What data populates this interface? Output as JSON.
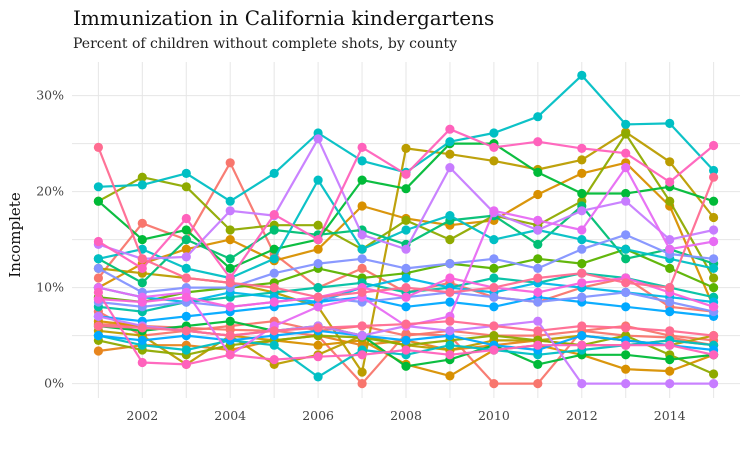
{
  "title": "Immunization in California kindergartens",
  "subtitle": "Percent of children without complete shots, by county",
  "chart_data": {
    "type": "line",
    "title": "Immunization in California kindergartens",
    "subtitle": "Percent of children without complete shots, by county",
    "xlabel": "",
    "ylabel": "Incomplete",
    "x": [
      2001,
      2002,
      2003,
      2004,
      2005,
      2006,
      2007,
      2008,
      2009,
      2010,
      2011,
      2012,
      2013,
      2014,
      2015
    ],
    "xlim": [
      2000.4,
      2015.6
    ],
    "ylim": [
      -0.015,
      0.335
    ],
    "x_ticks": [
      2002,
      2004,
      2006,
      2008,
      2010,
      2012,
      2014
    ],
    "x_tick_labels": [
      "2002",
      "2004",
      "2006",
      "2008",
      "2010",
      "2012",
      "2014"
    ],
    "y_ticks": [
      0,
      0.1,
      0.2,
      0.3
    ],
    "y_tick_labels": [
      "0%",
      "10%",
      "20%",
      "30%"
    ],
    "grid": true,
    "legend": "none",
    "markers": true,
    "series": [
      {
        "color": "#F8766D",
        "values": [
          0.11,
          0.167,
          0.15,
          0.23,
          0.135,
          0.1,
          0.12,
          0.095,
          0.105,
          0.09,
          0.085,
          0.1,
          0.11,
          0.08,
          0.075
        ]
      },
      {
        "color": "#F8766D",
        "values": [
          0.075,
          0.05,
          0.055,
          0.06,
          0.065,
          0.055,
          0.06,
          0.05,
          0.055,
          0.05,
          0.05,
          0.055,
          0.06,
          0.05,
          0.045
        ]
      },
      {
        "color": "#F8766D",
        "values": [
          0.062,
          0.06,
          0.058,
          0.056,
          0.055,
          0.05,
          0.0,
          0.052,
          0.05,
          0.0,
          0.0,
          0.055,
          0.05,
          0.048,
          0.04
        ]
      },
      {
        "color": "#E7851E",
        "values": [
          0.034,
          0.04,
          0.04,
          0.035,
          0.045,
          0.05,
          0.04,
          0.045,
          0.035,
          0.04,
          0.045,
          0.04,
          0.04,
          0.045,
          0.04
        ]
      },
      {
        "color": "#D89000",
        "values": [
          0.1,
          0.125,
          0.14,
          0.15,
          0.128,
          0.14,
          0.185,
          0.172,
          0.165,
          0.17,
          0.197,
          0.219,
          0.23,
          0.185,
          0.08
        ]
      },
      {
        "color": "#D89000",
        "values": [
          0.065,
          0.06,
          0.055,
          0.05,
          0.045,
          0.04,
          0.045,
          0.02,
          0.008,
          0.035,
          0.04,
          0.03,
          0.015,
          0.013,
          0.03
        ]
      },
      {
        "color": "#BB9D00",
        "values": [
          0.12,
          0.115,
          0.11,
          0.105,
          0.095,
          0.08,
          0.012,
          0.245,
          0.239,
          0.232,
          0.223,
          0.233,
          0.262,
          0.231,
          0.173
        ]
      },
      {
        "color": "#BB9D00",
        "values": [
          0.055,
          0.05,
          0.02,
          0.05,
          0.02,
          0.03,
          0.05,
          0.04,
          0.035,
          0.045,
          0.045,
          0.05,
          0.045,
          0.04,
          0.05
        ]
      },
      {
        "color": "#8FAA00",
        "values": [
          0.19,
          0.215,
          0.205,
          0.16,
          0.165,
          0.165,
          0.14,
          0.17,
          0.15,
          0.175,
          0.165,
          0.19,
          0.26,
          0.19,
          0.11
        ]
      },
      {
        "color": "#8FAA00",
        "values": [
          0.045,
          0.035,
          0.03,
          0.04,
          0.045,
          0.05,
          0.048,
          0.04,
          0.045,
          0.05,
          0.045,
          0.04,
          0.05,
          0.03,
          0.01
        ]
      },
      {
        "color": "#5BB300",
        "values": [
          0.09,
          0.085,
          0.095,
          0.1,
          0.105,
          0.12,
          0.11,
          0.115,
          0.125,
          0.12,
          0.13,
          0.125,
          0.14,
          0.12,
          0.1
        ]
      },
      {
        "color": "#00BA38",
        "values": [
          0.19,
          0.15,
          0.16,
          0.12,
          0.14,
          0.15,
          0.212,
          0.203,
          0.25,
          0.25,
          0.22,
          0.198,
          0.198,
          0.205,
          0.19
        ]
      },
      {
        "color": "#00BA38",
        "values": [
          0.06,
          0.055,
          0.06,
          0.065,
          0.055,
          0.06,
          0.05,
          0.018,
          0.025,
          0.04,
          0.02,
          0.03,
          0.03,
          0.025,
          0.03
        ]
      },
      {
        "color": "#00BF74",
        "values": [
          0.13,
          0.105,
          0.15,
          0.13,
          0.16,
          0.155,
          0.16,
          0.145,
          0.17,
          0.175,
          0.145,
          0.185,
          0.13,
          0.14,
          0.125
        ]
      },
      {
        "color": "#00C0A3",
        "values": [
          0.08,
          0.075,
          0.085,
          0.09,
          0.095,
          0.1,
          0.105,
          0.095,
          0.1,
          0.11,
          0.105,
          0.115,
          0.11,
          0.1,
          0.09
        ]
      },
      {
        "color": "#00BFC4",
        "values": [
          0.205,
          0.207,
          0.219,
          0.19,
          0.219,
          0.261,
          0.232,
          0.22,
          0.252,
          0.261,
          0.278,
          0.321,
          0.27,
          0.271,
          0.222
        ]
      },
      {
        "color": "#00BFC4",
        "values": [
          0.13,
          0.14,
          0.12,
          0.11,
          0.13,
          0.212,
          0.14,
          0.16,
          0.175,
          0.15,
          0.16,
          0.15,
          0.14,
          0.13,
          0.12
        ]
      },
      {
        "color": "#00BFC4",
        "values": [
          0.05,
          0.04,
          0.035,
          0.045,
          0.04,
          0.007,
          0.035,
          0.03,
          0.04,
          0.035,
          0.03,
          0.035,
          0.04,
          0.045,
          0.04
        ]
      },
      {
        "color": "#00B8E7",
        "values": [
          0.1,
          0.09,
          0.085,
          0.095,
          0.09,
          0.085,
          0.1,
          0.11,
          0.1,
          0.095,
          0.105,
          0.1,
          0.095,
          0.09,
          0.085
        ]
      },
      {
        "color": "#00A9FF",
        "values": [
          0.07,
          0.065,
          0.07,
          0.075,
          0.08,
          0.085,
          0.09,
          0.08,
          0.085,
          0.08,
          0.09,
          0.085,
          0.08,
          0.075,
          0.07
        ]
      },
      {
        "color": "#00A9FF",
        "values": [
          0.05,
          0.045,
          0.05,
          0.045,
          0.05,
          0.055,
          0.05,
          0.045,
          0.05,
          0.04,
          0.035,
          0.05,
          0.045,
          0.04,
          0.035
        ]
      },
      {
        "color": "#8494FF",
        "values": [
          0.12,
          0.095,
          0.1,
          0.1,
          0.115,
          0.125,
          0.13,
          0.12,
          0.125,
          0.13,
          0.12,
          0.14,
          0.155,
          0.135,
          0.13
        ]
      },
      {
        "color": "#8494FF",
        "values": [
          0.085,
          0.08,
          0.085,
          0.08,
          0.085,
          0.09,
          0.085,
          0.09,
          0.095,
          0.09,
          0.085,
          0.09,
          0.095,
          0.085,
          0.075
        ]
      },
      {
        "color": "#C77CFF",
        "values": [
          0.145,
          0.13,
          0.132,
          0.18,
          0.175,
          0.255,
          0.155,
          0.14,
          0.225,
          0.178,
          0.16,
          0.18,
          0.19,
          0.15,
          0.16
        ]
      },
      {
        "color": "#C77CFF",
        "values": [
          0.07,
          0.06,
          0.055,
          0.05,
          0.055,
          0.06,
          0.05,
          0.06,
          0.055,
          0.06,
          0.065,
          0.0,
          0.0,
          0.0,
          0.0
        ]
      },
      {
        "color": "#E76BF3",
        "values": [
          0.1,
          0.09,
          0.095,
          0.03,
          0.06,
          0.08,
          0.09,
          0.06,
          0.07,
          0.18,
          0.17,
          0.16,
          0.225,
          0.14,
          0.148
        ]
      },
      {
        "color": "#FA62DB",
        "values": [
          0.088,
          0.085,
          0.09,
          0.08,
          0.085,
          0.09,
          0.1,
          0.09,
          0.11,
          0.1,
          0.095,
          0.105,
          0.11,
          0.095,
          0.08
        ]
      },
      {
        "color": "#FF62BC",
        "values": [
          0.148,
          0.12,
          0.172,
          0.11,
          0.176,
          0.15,
          0.246,
          0.218,
          0.265,
          0.246,
          0.252,
          0.245,
          0.24,
          0.21,
          0.248
        ]
      },
      {
        "color": "#FF62BC",
        "values": [
          0.095,
          0.022,
          0.02,
          0.03,
          0.025,
          0.028,
          0.03,
          0.035,
          0.03,
          0.035,
          0.04,
          0.04,
          0.04,
          0.04,
          0.03
        ]
      },
      {
        "color": "#FF6C91",
        "values": [
          0.246,
          0.13,
          0.11,
          0.105,
          0.1,
          0.09,
          0.095,
          0.1,
          0.095,
          0.1,
          0.11,
          0.115,
          0.105,
          0.1,
          0.215
        ]
      },
      {
        "color": "#FF6C91",
        "values": [
          0.06,
          0.058,
          0.055,
          0.05,
          0.055,
          0.058,
          0.06,
          0.062,
          0.065,
          0.06,
          0.055,
          0.06,
          0.058,
          0.055,
          0.05
        ]
      }
    ]
  }
}
